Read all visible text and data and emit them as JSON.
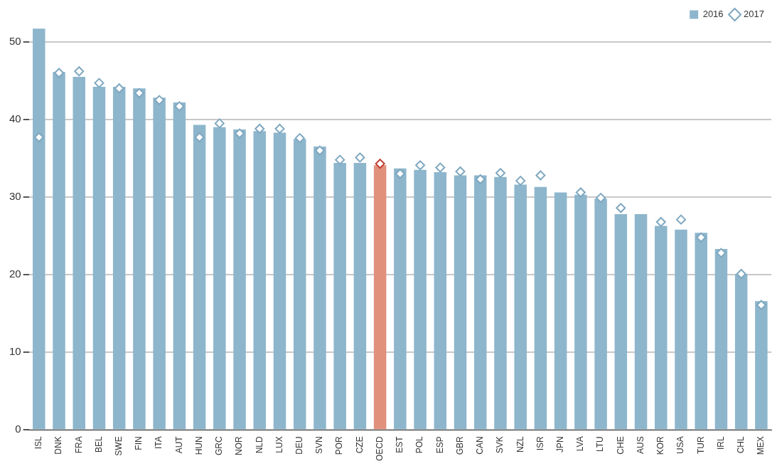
{
  "chart_data": {
    "type": "bar",
    "categories": [
      "ISL",
      "DNK",
      "FRA",
      "BEL",
      "SWE",
      "FIN",
      "ITA",
      "AUT",
      "HUN",
      "GRC",
      "NOR",
      "NLD",
      "LUX",
      "DEU",
      "SVN",
      "POR",
      "CZE",
      "OECD",
      "EST",
      "POL",
      "ESP",
      "GBR",
      "CAN",
      "SVK",
      "NZL",
      "ISR",
      "JPN",
      "LVA",
      "LTU",
      "CHE",
      "AUS",
      "KOR",
      "USA",
      "TUR",
      "IRL",
      "CHL",
      "MEX"
    ],
    "series": [
      {
        "name": "2016",
        "type": "bar",
        "color": "#8db6cc",
        "colors": [
          "#8db6cc",
          "#8db6cc",
          "#8db6cc",
          "#8db6cc",
          "#8db6cc",
          "#8db6cc",
          "#8db6cc",
          "#8db6cc",
          "#8db6cc",
          "#8db6cc",
          "#8db6cc",
          "#8db6cc",
          "#8db6cc",
          "#8db6cc",
          "#8db6cc",
          "#8db6cc",
          "#8db6cc",
          "#e0907b",
          "#8db6cc",
          "#8db6cc",
          "#8db6cc",
          "#8db6cc",
          "#8db6cc",
          "#8db6cc",
          "#8db6cc",
          "#8db6cc",
          "#8db6cc",
          "#8db6cc",
          "#8db6cc",
          "#8db6cc",
          "#8db6cc",
          "#8db6cc",
          "#8db6cc",
          "#8db6cc",
          "#8db6cc",
          "#8db6cc",
          "#8db6cc"
        ],
        "values": [
          51.7,
          46.1,
          45.5,
          44.2,
          44.2,
          44.0,
          42.8,
          42.2,
          39.3,
          39.0,
          38.7,
          38.5,
          38.3,
          37.5,
          36.5,
          34.4,
          34.4,
          34.1,
          33.7,
          33.5,
          33.2,
          32.8,
          32.8,
          32.6,
          31.6,
          31.3,
          30.6,
          30.3,
          29.8,
          27.8,
          27.8,
          26.3,
          25.8,
          25.4,
          23.3,
          20.1,
          16.6
        ]
      },
      {
        "name": "2017",
        "type": "scatter",
        "x": [
          "ISL",
          "DNK",
          "FRA",
          "BEL",
          "SWE",
          "FIN",
          "ITA",
          "AUT",
          "HUN",
          "GRC",
          "NOR",
          "NLD",
          "LUX",
          "DEU",
          "SVN",
          "POR",
          "CZE",
          "OECD",
          "EST",
          "POL",
          "ESP",
          "GBR",
          "CAN",
          "SVK",
          "NZL",
          "ISR",
          "JPN",
          "LVA",
          "LTU",
          "CHE",
          "AUS",
          "KOR",
          "USA",
          "TUR",
          "IRL",
          "CHL",
          "MEX"
        ],
        "color": "#7fa8c0",
        "colors": [
          "#7fa8c0",
          "#7fa8c0",
          "#7fa8c0",
          "#7fa8c0",
          "#7fa8c0",
          "#7fa8c0",
          "#7fa8c0",
          "#7fa8c0",
          "#7fa8c0",
          "#7fa8c0",
          "#7fa8c0",
          "#7fa8c0",
          "#7fa8c0",
          "#7fa8c0",
          "#7fa8c0",
          "#7fa8c0",
          "#7fa8c0",
          "#c0392b",
          "#7fa8c0",
          "#7fa8c0",
          "#7fa8c0",
          "#7fa8c0",
          "#7fa8c0",
          "#7fa8c0",
          "#7fa8c0",
          "#7fa8c0",
          "#7fa8c0",
          "#7fa8c0",
          "#7fa8c0",
          "#7fa8c0",
          "#7fa8c0",
          "#7fa8c0",
          "#7fa8c0",
          "#7fa8c0",
          "#7fa8c0",
          "#7fa8c0",
          "#7fa8c0"
        ],
        "values": [
          37.7,
          46.0,
          46.2,
          44.7,
          44.0,
          43.4,
          42.5,
          41.7,
          37.7,
          39.5,
          38.2,
          38.8,
          38.8,
          37.6,
          36.0,
          34.8,
          35.1,
          34.3,
          33.0,
          34.1,
          33.8,
          33.3,
          32.3,
          33.1,
          32.1,
          32.8,
          null,
          30.6,
          29.9,
          28.6,
          null,
          26.8,
          27.1,
          24.8,
          22.8,
          20.1,
          16.1
        ]
      }
    ],
    "ylim": [
      0,
      52
    ],
    "yticks": [
      0,
      10,
      20,
      30,
      40,
      50
    ],
    "grid": "y",
    "legend": "top right",
    "marker": "diamond"
  }
}
